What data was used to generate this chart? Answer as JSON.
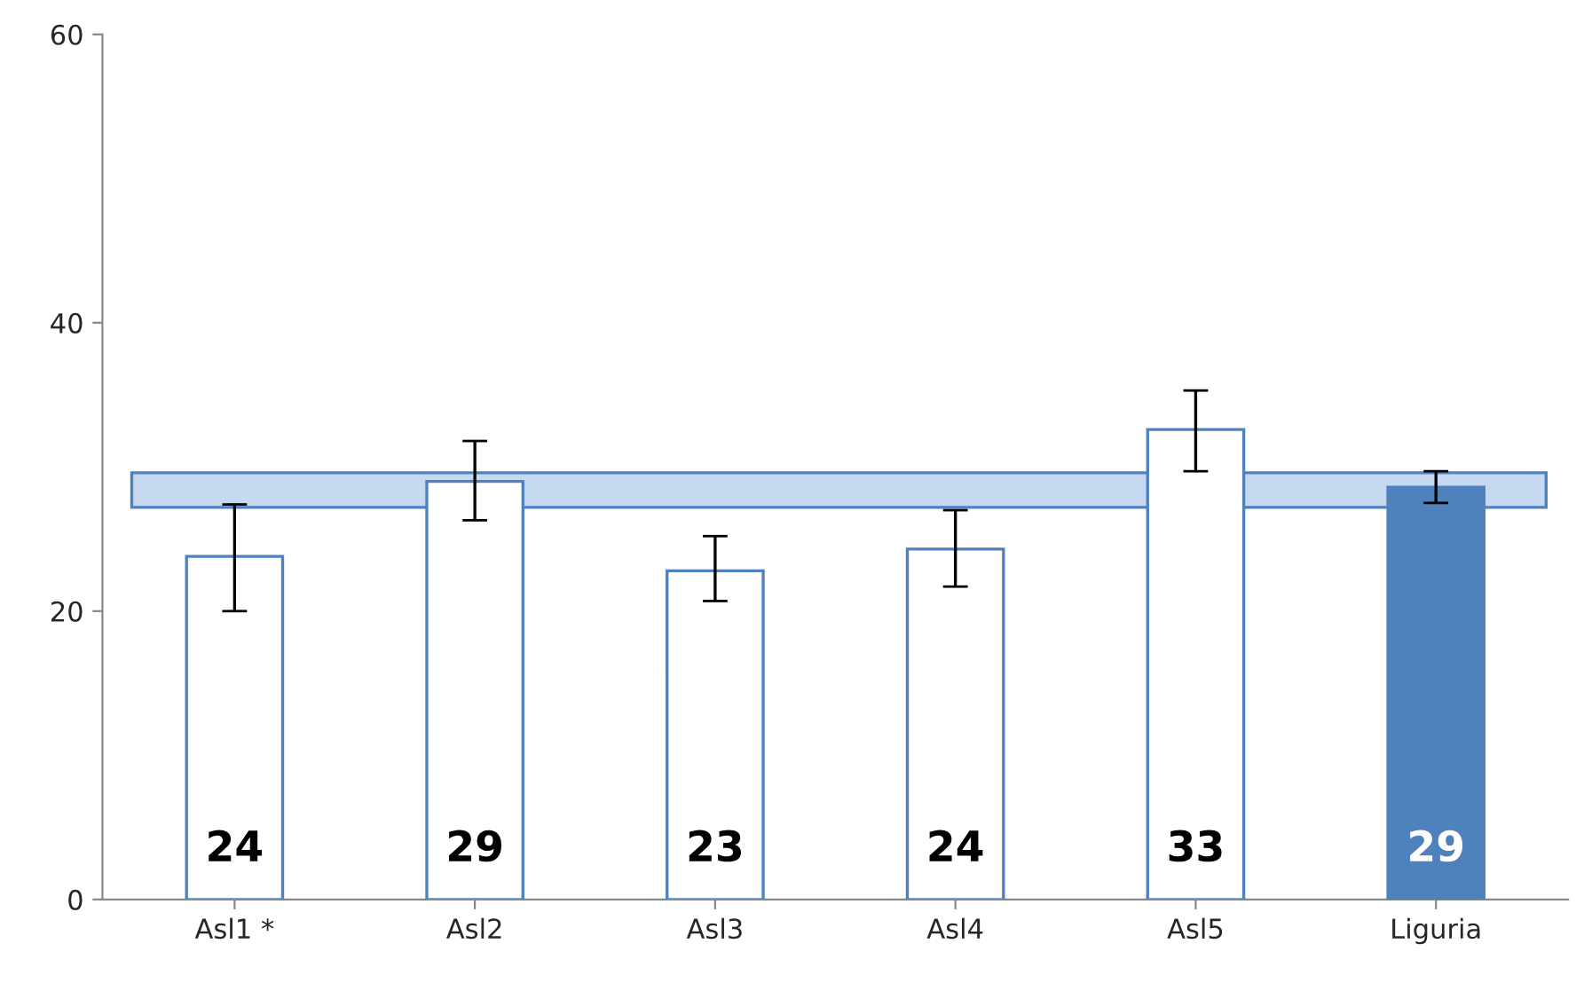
{
  "chart_data": {
    "type": "bar",
    "categories": [
      "Asl1 *",
      "Asl2",
      "Asl3",
      "Asl4",
      "Asl5",
      "Liguria"
    ],
    "values": [
      23.8,
      29.0,
      22.8,
      24.3,
      32.6,
      28.6
    ],
    "colors": [
      "#ffffff",
      "#ffffff",
      "#ffffff",
      "#ffffff",
      "#ffffff",
      "#4f81bd"
    ],
    "errors": [
      [
        20.0,
        27.4
      ],
      [
        26.3,
        31.8
      ],
      [
        20.7,
        25.2
      ],
      [
        21.7,
        27.0
      ],
      [
        29.7,
        35.3
      ],
      [
        27.5,
        29.7
      ]
    ],
    "value_labels": [
      "24",
      "29",
      "23",
      "24",
      "33",
      "29"
    ],
    "bands": [
      {
        "axis": "y",
        "from": 27.2,
        "to": 29.6,
        "color": "#c6d9f1"
      }
    ],
    "ylim": [
      0,
      60
    ],
    "yticks": [
      0,
      20,
      40,
      60
    ],
    "grid": false
  }
}
